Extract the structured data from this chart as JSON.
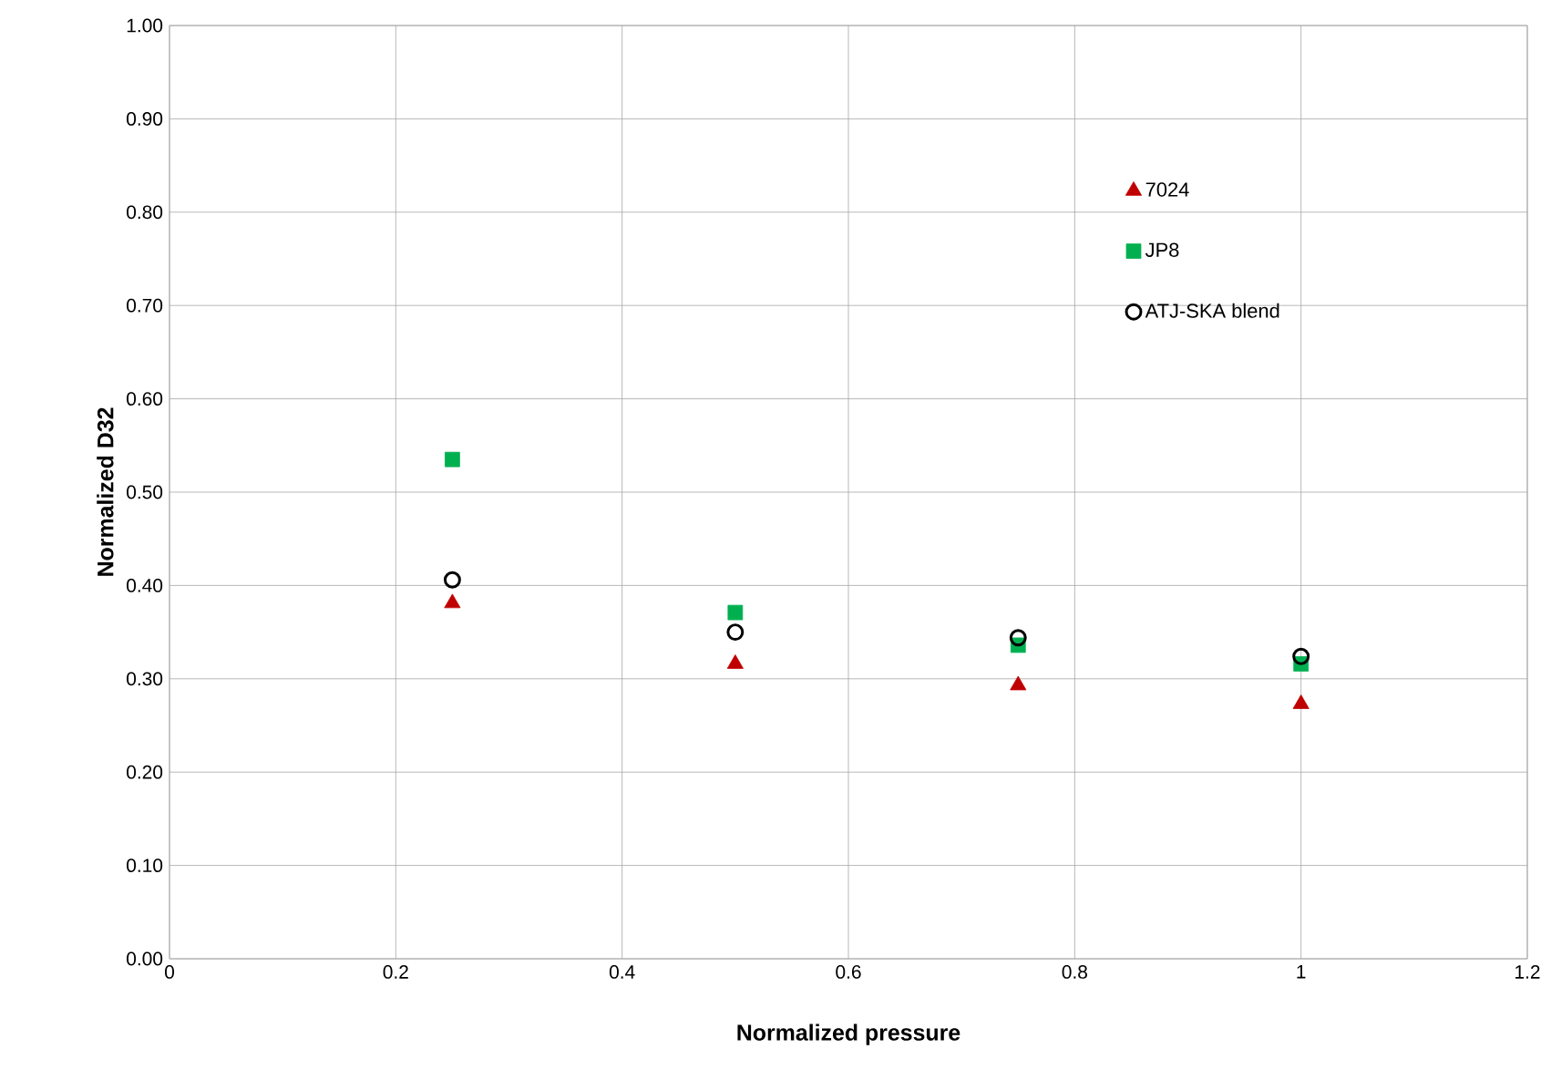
{
  "chart_data": {
    "type": "scatter",
    "xlabel": "Normalized pressure",
    "ylabel": "Normalized D32",
    "x": [
      0.25,
      0.5,
      0.75,
      1.0
    ],
    "series": [
      {
        "name": "7024",
        "color": "#c00000",
        "marker": "triangle",
        "values": [
          0.381,
          0.316,
          0.293,
          0.273
        ]
      },
      {
        "name": "JP8",
        "color": "#00b050",
        "marker": "square",
        "values": [
          0.535,
          0.371,
          0.336,
          0.316
        ]
      },
      {
        "name": "ATJ-SKA blend",
        "color": "#000000",
        "marker": "circle",
        "values": [
          0.406,
          0.35,
          0.344,
          0.324
        ]
      }
    ],
    "xlim": [
      0,
      1.2
    ],
    "xticks": [
      0,
      0.2,
      0.4,
      0.6,
      0.8,
      1,
      1.2
    ],
    "ylim": [
      0,
      1
    ],
    "yticks": [
      {
        "value": 0,
        "label": "0.00"
      },
      {
        "value": 0.1,
        "label": "0.10"
      },
      {
        "value": 0.2,
        "label": "0.20"
      },
      {
        "value": 0.3,
        "label": "0.30"
      },
      {
        "value": 0.4,
        "label": "0.40"
      },
      {
        "value": 0.5,
        "label": "0.50"
      },
      {
        "value": 0.6,
        "label": "0.60"
      },
      {
        "value": 0.7,
        "label": "0.70"
      },
      {
        "value": 0.8,
        "label": "0.80"
      },
      {
        "value": 0.9,
        "label": "0.90"
      },
      {
        "value": 1,
        "label": "1.00"
      }
    ],
    "grid": true,
    "legend": "top right"
  }
}
